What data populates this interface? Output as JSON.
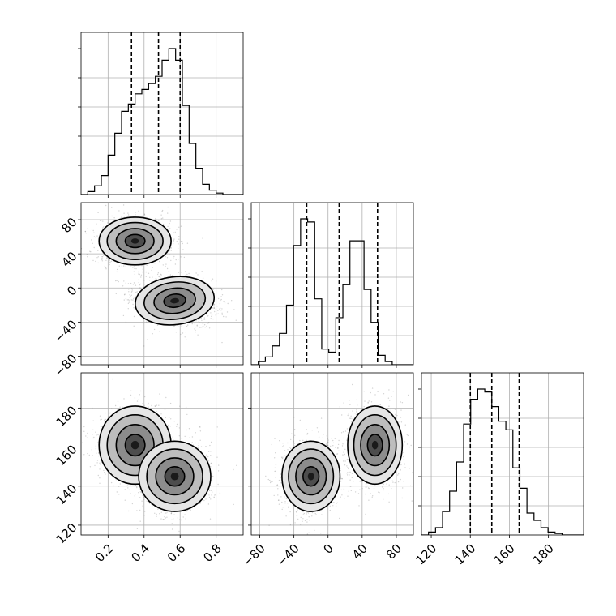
{
  "chart_data": {
    "type": "corner",
    "title": "",
    "grid": true,
    "colors": {
      "line": "#000000",
      "grid": "#b0b0b0",
      "points": "#808080"
    },
    "parameters": [
      {
        "label": "",
        "range": [
          0.05,
          0.95
        ],
        "ticks": [
          0.2,
          0.4,
          0.6,
          0.8
        ],
        "tick_labels": [
          "0.2",
          "0.4",
          "0.6",
          "0.8"
        ],
        "quantiles": [
          0.33,
          0.48,
          0.6
        ]
      },
      {
        "label": "",
        "range": [
          -90,
          100
        ],
        "ticks": [
          -80,
          -40,
          0,
          40,
          80
        ],
        "tick_labels": [
          "−80",
          "−40",
          "0",
          "40",
          "80"
        ],
        "quantiles": [
          -25,
          13,
          58
        ]
      },
      {
        "label": "",
        "range": [
          115,
          198
        ],
        "ticks": [
          120,
          140,
          160,
          180
        ],
        "tick_labels": [
          "120",
          "140",
          "160",
          "180"
        ],
        "quantiles": [
          140,
          151,
          165
        ]
      }
    ],
    "histograms": [
      {
        "param": 0,
        "bin_start": 0.05,
        "bin_width": 0.0375,
        "counts": [
          0.0,
          0.02,
          0.06,
          0.13,
          0.27,
          0.42,
          0.57,
          0.62,
          0.69,
          0.72,
          0.76,
          0.81,
          0.92,
          1.0,
          0.92,
          0.61,
          0.35,
          0.18,
          0.07,
          0.03,
          0.01,
          0.0,
          0.0,
          0.0
        ]
      },
      {
        "param": 1,
        "bin_start": -90,
        "bin_width": 8.26,
        "counts": [
          0.0,
          0.02,
          0.05,
          0.12,
          0.2,
          0.38,
          0.76,
          0.93,
          0.91,
          0.42,
          0.1,
          0.08,
          0.3,
          0.51,
          0.79,
          0.79,
          0.48,
          0.27,
          0.06,
          0.02,
          0.0,
          0.0,
          0.0
        ]
      },
      {
        "param": 2,
        "bin_start": 115,
        "bin_width": 3.6,
        "counts": [
          0.0,
          0.02,
          0.05,
          0.16,
          0.3,
          0.5,
          0.76,
          0.93,
          1.0,
          0.98,
          0.88,
          0.78,
          0.72,
          0.46,
          0.32,
          0.15,
          0.1,
          0.05,
          0.02,
          0.01,
          0.0,
          0.0,
          0.0
        ]
      }
    ],
    "pairs": [
      {
        "x": 0,
        "y": 1,
        "modes": [
          {
            "mx": 0.35,
            "my": 55,
            "sx": 0.1,
            "sy": 14,
            "r": 0.0,
            "w": 0.47
          },
          {
            "mx": 0.57,
            "my": -15,
            "sx": 0.11,
            "sy": 14,
            "r": -0.2,
            "w": 0.53
          }
        ]
      },
      {
        "x": 1,
        "y": 2,
        "modes": [
          {
            "mx": -20,
            "my": 145,
            "sx": 17,
            "sy": 9,
            "r": 0.0,
            "w": 0.53
          },
          {
            "mx": 55,
            "my": 161,
            "sx": 16,
            "sy": 10,
            "r": 0.0,
            "w": 0.47
          }
        ]
      },
      {
        "x": 0,
        "y": 2,
        "modes": [
          {
            "mx": 0.35,
            "my": 161,
            "sx": 0.1,
            "sy": 10,
            "r": 0.0,
            "w": 0.47
          },
          {
            "mx": 0.57,
            "my": 145,
            "sx": 0.1,
            "sy": 9,
            "r": 0.0,
            "w": 0.53
          }
        ]
      }
    ]
  }
}
